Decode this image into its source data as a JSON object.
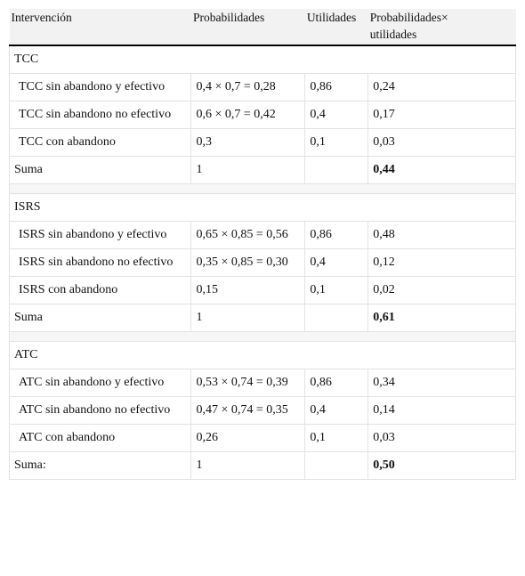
{
  "header": [
    "Intervención",
    "Probabilidades",
    "Utilidades",
    "Probabilidades× utilidades"
  ],
  "sections": [
    {
      "title": "TCC",
      "rows": [
        [
          "TCC sin abandono y efectivo",
          "0,4 × 0,7 = 0,28",
          "0,86",
          "0,24"
        ],
        [
          "TCC sin abandono no efectivo",
          "0,6 × 0,7 = 0,42",
          "0,4",
          "0,17"
        ],
        [
          "TCC con abandono",
          "0,3",
          "0,1",
          "0,03"
        ]
      ],
      "total": {
        "label": "Suma",
        "probability": "1",
        "result": "0,44"
      }
    },
    {
      "title": "ISRS",
      "rows": [
        [
          "ISRS sin abandono y efectivo",
          "0,65 × 0,85 = 0,56",
          "0,86",
          "0,48"
        ],
        [
          "ISRS sin abandono no efectivo",
          "0,35 × 0,85 = 0,30",
          "0,4",
          "0,12"
        ],
        [
          "ISRS con abandono",
          "0,15",
          "0,1",
          "0,02"
        ]
      ],
      "total": {
        "label": "Suma",
        "probability": "1",
        "result": "0,61"
      }
    },
    {
      "title": "ATC",
      "rows": [
        [
          "ATC sin abandono y efectivo",
          "0,53 × 0,74 = 0,39",
          "0,86",
          "0,34"
        ],
        [
          "ATC sin abandono no efectivo",
          "0,47 × 0,74 = 0,35",
          "0,4",
          "0,14"
        ],
        [
          "ATC con abandono",
          "0,26",
          "0,1",
          "0,03"
        ]
      ],
      "total": {
        "label": "Suma:",
        "probability": "1",
        "result": "0,50"
      }
    }
  ]
}
